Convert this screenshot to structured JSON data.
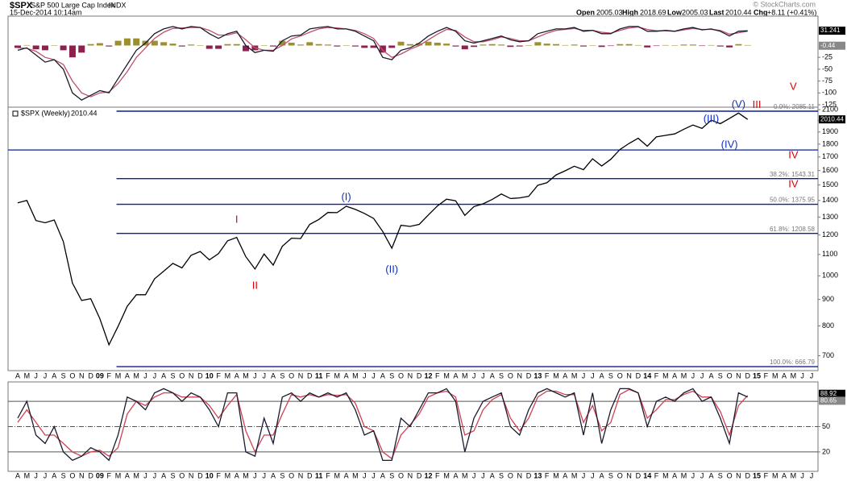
{
  "header": {
    "symbol": "$SPX",
    "name": "S&P 500 Large Cap Index",
    "exchange": "INDX",
    "datetime": "15-Dec-2014 10:14am",
    "open_label": "Open",
    "open": "2005.03",
    "high_label": "High",
    "high": "2018.69",
    "low_label": "Low",
    "low": "2005.03",
    "last_label": "Last",
    "last": "2010.44",
    "chg_label": "Chg",
    "chg": "+8.11 (+0.41%)",
    "credit": "© StockCharts.com"
  },
  "chart_data": [
    {
      "type": "line",
      "ylim": [
        -130,
        62
      ],
      "yticks": [
        -25,
        -50,
        -75,
        -100,
        -125
      ],
      "current_values": [
        31.241,
        -0.44
      ],
      "current_colors": [
        "#000000",
        "#888888"
      ],
      "series": [
        {
          "type": "bar",
          "color": "#9c8f2e",
          "negative_color": "#8e2050",
          "values": [
            -5,
            1,
            -8,
            -10,
            0,
            -10,
            -25,
            -15,
            3,
            5,
            -2,
            10,
            15,
            15,
            10,
            10,
            7,
            4,
            -2,
            2,
            0,
            -7,
            -7,
            3,
            3,
            -12,
            -10,
            0,
            -2,
            10,
            6,
            2,
            7,
            3,
            2,
            -2,
            0,
            -2,
            -5,
            -5,
            -15,
            -5,
            8,
            3,
            5,
            8,
            6,
            4,
            -2,
            -8,
            -3,
            2,
            3,
            2,
            -3,
            -2,
            0,
            7,
            4,
            3,
            1,
            2,
            -2,
            0,
            -3,
            -1,
            3,
            3,
            1,
            -4,
            -1,
            1,
            0,
            2,
            2,
            -1,
            1,
            -2,
            -4,
            3,
            1,
            null,
            null,
            null,
            null,
            null,
            null,
            null
          ]
        },
        {
          "color": "#c0506e",
          "values": [
            -5,
            -6,
            -12,
            -25,
            -30,
            -40,
            -75,
            -100,
            -108,
            -100,
            -98,
            -80,
            -55,
            -25,
            -5,
            15,
            28,
            36,
            37,
            38,
            38,
            32,
            22,
            22,
            27,
            12,
            -5,
            -10,
            -10,
            0,
            14,
            20,
            28,
            35,
            38,
            37,
            35,
            32,
            25,
            15,
            -10,
            -25,
            -18,
            -8,
            0,
            12,
            24,
            34,
            32,
            18,
            8,
            8,
            12,
            18,
            15,
            10,
            10,
            18,
            26,
            32,
            34,
            36,
            32,
            32,
            28,
            26,
            32,
            37,
            39,
            34,
            31,
            31,
            30,
            33,
            36,
            34,
            34,
            32,
            24,
            27,
            30,
            null,
            null,
            null,
            null,
            null,
            null,
            null
          ]
        },
        {
          "color": "#1a1a2e",
          "values": [
            -10,
            -5,
            -20,
            -35,
            -30,
            -50,
            -100,
            -115,
            -105,
            -95,
            -100,
            -70,
            -40,
            -10,
            5,
            25,
            35,
            40,
            35,
            40,
            38,
            25,
            15,
            25,
            30,
            0,
            -15,
            -10,
            -12,
            10,
            20,
            22,
            35,
            38,
            40,
            35,
            35,
            30,
            20,
            10,
            -25,
            -30,
            -10,
            -5,
            5,
            20,
            30,
            38,
            30,
            10,
            5,
            10,
            15,
            20,
            12,
            8,
            10,
            25,
            30,
            35,
            35,
            38,
            30,
            32,
            25,
            25,
            35,
            40,
            40,
            30,
            30,
            32,
            30,
            35,
            38,
            33,
            35,
            30,
            20,
            30,
            31,
            null,
            null,
            null,
            null,
            null,
            null,
            null
          ]
        }
      ]
    },
    {
      "type": "line",
      "log_scale": true,
      "ylim": [
        655,
        2123
      ],
      "yticks": [
        700,
        800,
        900,
        1000,
        1100,
        1200,
        1300,
        1400,
        1500,
        1600,
        1700,
        1800,
        1900,
        2000,
        2100
      ],
      "categories": [
        "A",
        "M",
        "J",
        "J",
        "A",
        "S",
        "O",
        "N",
        "D",
        "09",
        "F",
        "M",
        "A",
        "M",
        "J",
        "J",
        "A",
        "S",
        "O",
        "N",
        "D",
        "10",
        "F",
        "M",
        "A",
        "M",
        "J",
        "J",
        "A",
        "S",
        "O",
        "N",
        "D",
        "11",
        "F",
        "M",
        "A",
        "M",
        "J",
        "J",
        "A",
        "S",
        "O",
        "N",
        "D",
        "12",
        "F",
        "M",
        "A",
        "M",
        "J",
        "J",
        "A",
        "S",
        "O",
        "N",
        "D",
        "13",
        "F",
        "M",
        "A",
        "M",
        "J",
        "J",
        "A",
        "S",
        "O",
        "N",
        "D",
        "14",
        "F",
        "M",
        "A",
        "M",
        "J",
        "J",
        "A",
        "S",
        "O",
        "N",
        "D",
        "15",
        "F",
        "M",
        "A",
        "M",
        "J",
        "J"
      ],
      "series": [
        {
          "name": "$SPX (Weekly)",
          "color": "#000000",
          "values": [
            1385,
            1400,
            1280,
            1267,
            1283,
            1165,
            968,
            896,
            903,
            826,
            735,
            798,
            873,
            919,
            919,
            987,
            1021,
            1057,
            1036,
            1096,
            1115,
            1074,
            1104,
            1169,
            1187,
            1089,
            1031,
            1102,
            1049,
            1141,
            1183,
            1181,
            1258,
            1286,
            1327,
            1326,
            1364,
            1345,
            1321,
            1292,
            1219,
            1131,
            1253,
            1247,
            1258,
            1312,
            1366,
            1408,
            1398,
            1310,
            1362,
            1379,
            1406,
            1441,
            1412,
            1416,
            1426,
            1498,
            1515,
            1569,
            1598,
            1631,
            1606,
            1686,
            1633,
            1682,
            1757,
            1806,
            1848,
            1783,
            1859,
            1872,
            1884,
            1924,
            1960,
            1931,
            2003,
            1972,
            2018,
            2068,
            2010,
            null,
            null,
            null,
            null,
            null,
            null,
            null
          ]
        }
      ],
      "current_values": [
        2010.44
      ],
      "levels": [
        {
          "value": 2085.11,
          "label": "0.0%: 2085.11"
        },
        {
          "value": 1543.31,
          "label": "38.2%: 1543.31"
        },
        {
          "value": 1375.95,
          "label": "50.0%: 1375.95"
        },
        {
          "value": 1208.58,
          "label": "61.8%: 1208.58"
        },
        {
          "value": 666.79,
          "label": "100.0%: 666.79"
        }
      ],
      "level_color": "#0a1f9e",
      "extra_lines": [
        1754
      ],
      "annotations": [
        {
          "text": "I",
          "color": "#e00000",
          "at": [
            24,
            1283
          ]
        },
        {
          "text": "II",
          "color": "#e00000",
          "at": [
            26,
            955
          ]
        },
        {
          "text": "(I)",
          "color": "#1030c0",
          "at": [
            36,
            1419
          ]
        },
        {
          "text": "(II)",
          "color": "#1030c0",
          "at": [
            41,
            1026
          ]
        },
        {
          "text": "(III)",
          "color": "#1030c0",
          "at": [
            76,
            2010
          ]
        },
        {
          "text": "(IV)",
          "color": "#1030c0",
          "at": [
            78,
            1792
          ]
        },
        {
          "text": "(V)",
          "color": "#1030c0",
          "at": [
            79,
            2146
          ]
        },
        {
          "text": "III",
          "color": "#e00000",
          "at": [
            81,
            2140
          ]
        },
        {
          "text": "IV",
          "color": "#e00000",
          "at": [
            85,
            1711
          ]
        },
        {
          "text": "IV",
          "color": "#e00000",
          "at": [
            85,
            1503
          ]
        },
        {
          "text": "V",
          "color": "#e00000",
          "at": [
            85,
            2323
          ]
        }
      ]
    },
    {
      "type": "line",
      "ylim": [
        -3,
        103
      ],
      "yticks": [
        20,
        50
      ],
      "hlines": [
        80,
        50,
        20
      ],
      "current_values": [
        88.92,
        80.65
      ],
      "current_colors": [
        "#000000",
        "#888888"
      ],
      "series": [
        {
          "color": "#d04050",
          "values": [
            55,
            70,
            55,
            40,
            40,
            30,
            20,
            15,
            20,
            22,
            15,
            25,
            65,
            80,
            75,
            85,
            90,
            90,
            85,
            85,
            85,
            75,
            60,
            75,
            88,
            45,
            20,
            40,
            40,
            65,
            88,
            85,
            88,
            85,
            88,
            87,
            88,
            78,
            50,
            45,
            20,
            12,
            40,
            52,
            65,
            85,
            90,
            92,
            85,
            40,
            45,
            70,
            82,
            88,
            60,
            45,
            60,
            85,
            92,
            92,
            88,
            88,
            55,
            75,
            45,
            55,
            88,
            94,
            90,
            60,
            70,
            82,
            82,
            88,
            92,
            85,
            85,
            68,
            40,
            75,
            87,
            null,
            null,
            null,
            null,
            null,
            null,
            null
          ]
        },
        {
          "color": "#1a1a2e",
          "values": [
            60,
            80,
            40,
            30,
            50,
            20,
            10,
            15,
            25,
            20,
            10,
            40,
            85,
            80,
            70,
            90,
            95,
            90,
            80,
            90,
            85,
            70,
            50,
            90,
            90,
            20,
            15,
            60,
            30,
            85,
            90,
            80,
            90,
            85,
            90,
            85,
            90,
            70,
            40,
            45,
            10,
            10,
            60,
            50,
            70,
            90,
            90,
            95,
            80,
            20,
            60,
            80,
            85,
            90,
            50,
            40,
            70,
            90,
            95,
            90,
            85,
            90,
            40,
            90,
            30,
            70,
            95,
            95,
            90,
            50,
            80,
            85,
            80,
            90,
            95,
            80,
            85,
            60,
            30,
            90,
            85,
            null,
            null,
            null,
            null,
            null,
            null,
            null
          ]
        }
      ]
    }
  ]
}
